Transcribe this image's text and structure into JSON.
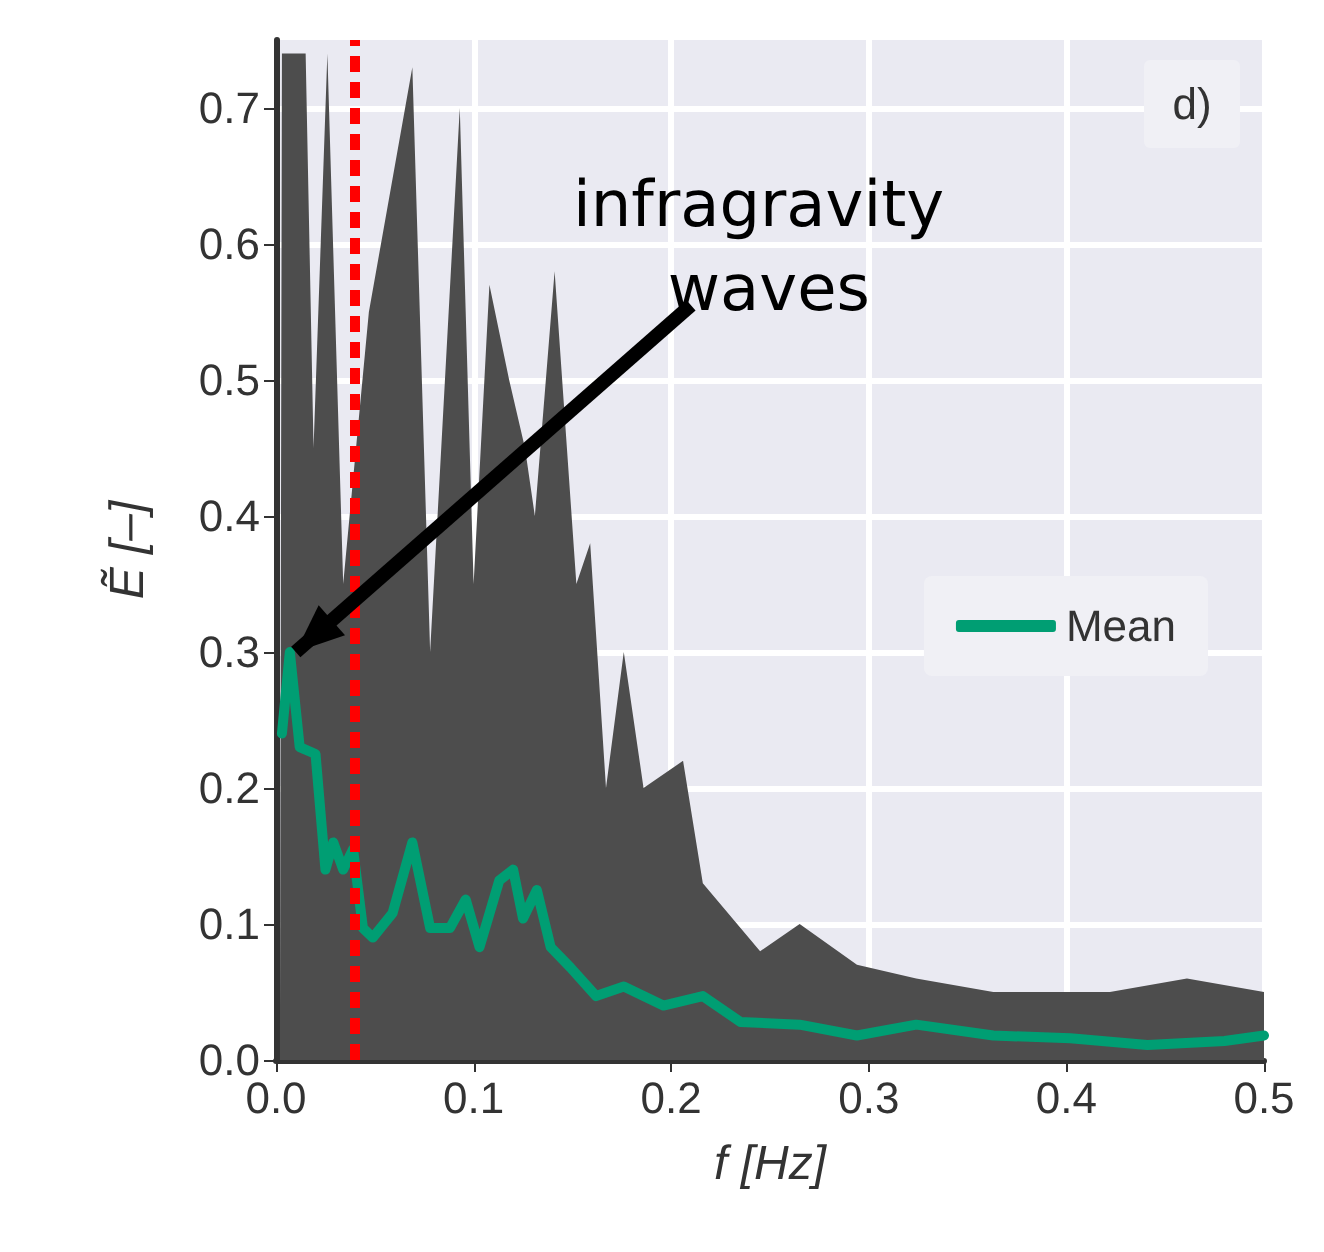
{
  "chart_data": {
    "type": "line",
    "xlabel": "f [Hz]",
    "ylabel": "Ẽ [–]",
    "xlim": [
      0,
      0.5
    ],
    "ylim": [
      0,
      0.75
    ],
    "xticks": [
      {
        "value": 0,
        "label": "0.0"
      },
      {
        "value": 0.1,
        "label": "0.1"
      },
      {
        "value": 0.2,
        "label": "0.2"
      },
      {
        "value": 0.3,
        "label": "0.3"
      },
      {
        "value": 0.4,
        "label": "0.4"
      },
      {
        "value": 0.5,
        "label": "0.5"
      }
    ],
    "yticks": [
      {
        "value": 0,
        "label": "0.0"
      },
      {
        "value": 0.1,
        "label": "0.1"
      },
      {
        "value": 0.2,
        "label": "0.2"
      },
      {
        "value": 0.3,
        "label": "0.3"
      },
      {
        "value": 0.4,
        "label": "0.4"
      },
      {
        "value": 0.5,
        "label": "0.5"
      },
      {
        "value": 0.6,
        "label": "0.6"
      },
      {
        "value": 0.7,
        "label": "0.7"
      }
    ],
    "grid": true,
    "legend": "right",
    "marker": "none",
    "line_style": "solid",
    "series": [
      {
        "type": "area",
        "color": "#4d4d4d",
        "x": [
          0.002,
          0.003,
          0.015,
          0.019,
          0.026,
          0.034,
          0.047,
          0.069,
          0.078,
          0.093,
          0.1,
          0.108,
          0.118,
          0.126,
          0.131,
          0.141,
          0.152,
          0.159,
          0.167,
          0.176,
          0.186,
          0.206,
          0.216,
          0.245,
          0.265,
          0.294,
          0.324,
          0.363,
          0.422,
          0.461,
          0.5
        ],
        "values": [
          0.02,
          0.74,
          0.74,
          0.45,
          0.74,
          0.35,
          0.55,
          0.73,
          0.3,
          0.7,
          0.35,
          0.57,
          0.5,
          0.45,
          0.4,
          0.58,
          0.35,
          0.38,
          0.2,
          0.3,
          0.2,
          0.22,
          0.13,
          0.08,
          0.1,
          0.07,
          0.06,
          0.05,
          0.05,
          0.06,
          0.05
        ]
      },
      {
        "name": "Mean",
        "color": "#009e73",
        "x": [
          0.003,
          0.007,
          0.012,
          0.02,
          0.025,
          0.029,
          0.034,
          0.039,
          0.044,
          0.049,
          0.059,
          0.069,
          0.078,
          0.088,
          0.096,
          0.103,
          0.113,
          0.12,
          0.125,
          0.132,
          0.139,
          0.149,
          0.162,
          0.176,
          0.196,
          0.216,
          0.235,
          0.265,
          0.294,
          0.324,
          0.363,
          0.402,
          0.441,
          0.48,
          0.5
        ],
        "values": [
          0.24,
          0.3,
          0.23,
          0.225,
          0.14,
          0.16,
          0.14,
          0.155,
          0.097,
          0.09,
          0.108,
          0.16,
          0.097,
          0.097,
          0.118,
          0.083,
          0.132,
          0.14,
          0.104,
          0.125,
          0.083,
          0.068,
          0.047,
          0.054,
          0.04,
          0.047,
          0.028,
          0.026,
          0.018,
          0.026,
          0.018,
          0.016,
          0.011,
          0.014,
          0.018
        ]
      }
    ],
    "ref_lines": [
      {
        "axis": "x",
        "value": 0.04,
        "color": "#ff0000",
        "line_style": "dashed"
      }
    ],
    "annotations": [
      {
        "text": "infragravity waves",
        "x": 0.01,
        "y": 0.3
      },
      "d)"
    ]
  }
}
